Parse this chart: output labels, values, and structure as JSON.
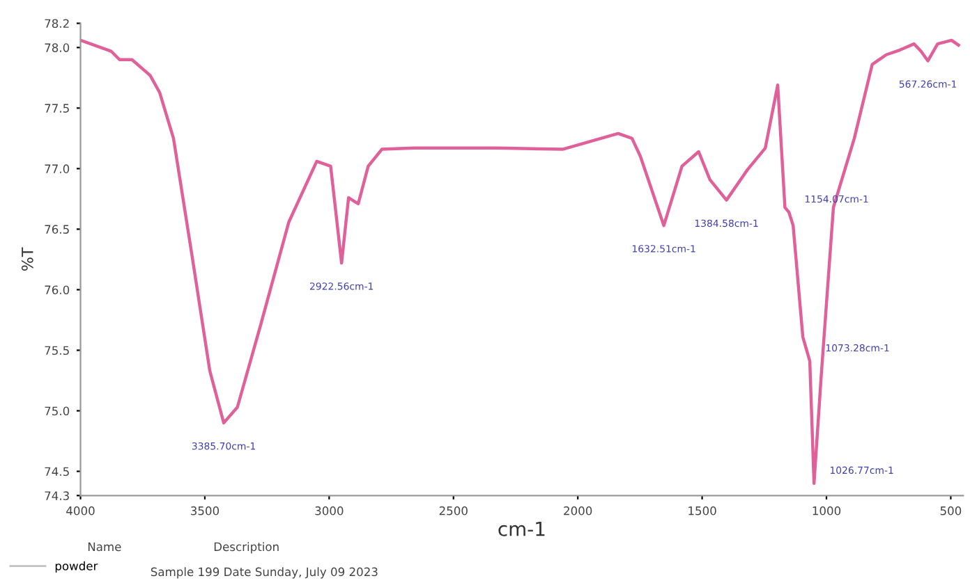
{
  "chart_data": {
    "type": "line",
    "xlabel": "cm-1",
    "ylabel": "%T",
    "xlim": [
      4000,
      450
    ],
    "xticks": [
      4000,
      3500,
      3000,
      2500,
      2000,
      1500,
      1000,
      500
    ],
    "ylim": [
      74.3,
      78.2
    ],
    "yticks": [
      74.3,
      74.5,
      {
        "value": 75,
        "label": "75.0"
      },
      75.5,
      {
        "value": 76,
        "label": "76.0"
      },
      76.5,
      {
        "value": 77,
        "label": "77.0"
      },
      77.5,
      {
        "value": 78,
        "label": "78.0"
      },
      78.2
    ],
    "grid": false,
    "legend": "bottom left",
    "marker": "none",
    "line_style": "solid",
    "series": [
      {
        "name": "powder",
        "color": "#e0609a",
        "x": [
          4000,
          3877,
          3843,
          3793,
          3720,
          3682,
          3626,
          3553,
          3480,
          3424,
          3369,
          3274,
          3162,
          3050,
          2994,
          2950,
          2922,
          2883,
          2843,
          2788,
          2659,
          2380,
          2324,
          2061,
          1838,
          1782,
          1748,
          1654,
          1581,
          1514,
          1469,
          1402,
          1318,
          1246,
          1196,
          1167,
          1151,
          1134,
          1095,
          1067,
          1050,
          1022,
          972,
          888,
          816,
          760,
          704,
          648,
          620,
          592,
          553,
          497,
          469
        ],
        "values": [
          78.06,
          77.97,
          77.9,
          77.9,
          77.77,
          77.63,
          77.25,
          76.3,
          75.33,
          74.9,
          75.03,
          75.72,
          76.56,
          77.06,
          77.02,
          76.22,
          76.76,
          76.71,
          77.02,
          77.16,
          77.17,
          77.17,
          77.17,
          77.16,
          77.29,
          77.25,
          77.1,
          76.53,
          77.02,
          77.14,
          76.91,
          76.74,
          76.99,
          77.17,
          77.69,
          76.68,
          76.64,
          76.53,
          75.61,
          75.41,
          74.4,
          75.26,
          76.68,
          77.25,
          77.86,
          77.94,
          77.98,
          78.03,
          77.97,
          77.89,
          78.03,
          78.06,
          78.02
        ]
      }
    ],
    "annotations": [
      {
        "text": "3385.70cm-1",
        "x": 3424,
        "y": 74.9
      },
      {
        "text": "2922.56cm-1",
        "x": 2950,
        "y": 76.22
      },
      {
        "text": "1632.51cm-1",
        "x": 1654,
        "y": 76.53
      },
      {
        "text": "1384.58cm-1",
        "x": 1402,
        "y": 76.74
      },
      {
        "text": "1154.07cm-1",
        "x": 1151,
        "y": 76.64
      },
      {
        "text": "1073.28cm-1",
        "x": 1067,
        "y": 75.41
      },
      {
        "text": "1026.77cm-1",
        "x": 1050,
        "y": 74.4
      },
      {
        "text": "567.26cm-1",
        "x": 592,
        "y": 77.89
      },
      "Name",
      "Description",
      "Sample 199 Date Sunday, July 09 2023"
    ]
  }
}
